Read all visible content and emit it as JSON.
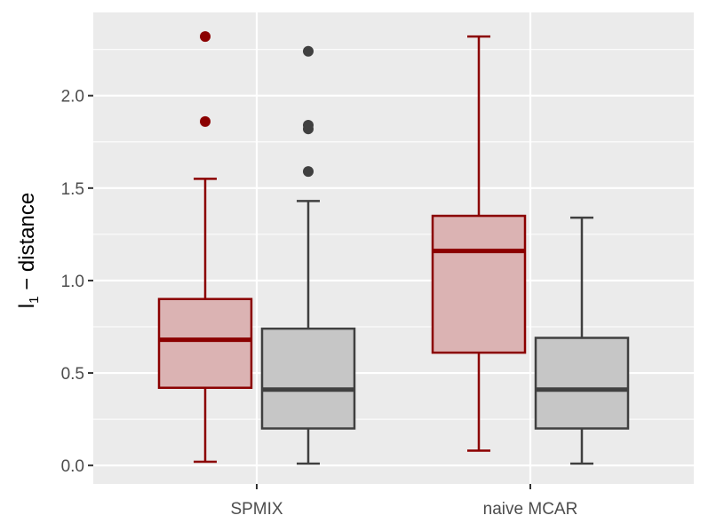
{
  "chart_data": {
    "type": "boxplot",
    "title": "",
    "xlabel": "",
    "ylabel": {
      "base": "l",
      "subscript": "1",
      "rest": " − distance"
    },
    "ylim": [
      -0.1,
      2.45
    ],
    "yticks": [
      "0.0",
      "0.5",
      "1.0",
      "1.5",
      "2.0"
    ],
    "ytick_values": [
      0.0,
      0.5,
      1.0,
      1.5,
      2.0
    ],
    "categories": [
      "SPMIX",
      "naive MCAR"
    ],
    "grid": true,
    "legend": "none",
    "panel_background": "#ebebeb",
    "series": [
      {
        "stroke": "#8b0000",
        "fill": "#dbb3b3",
        "boxes": [
          {
            "whisker_low": 0.02,
            "q1": 0.42,
            "median": 0.68,
            "q3": 0.9,
            "whisker_high": 1.55,
            "outliers": [
              1.86,
              2.32
            ]
          },
          {
            "whisker_low": 0.08,
            "q1": 0.61,
            "median": 1.16,
            "q3": 1.35,
            "whisker_high": 2.32,
            "outliers": []
          }
        ]
      },
      {
        "stroke": "#404040",
        "fill": "#c6c6c6",
        "boxes": [
          {
            "whisker_low": 0.01,
            "q1": 0.2,
            "median": 0.41,
            "q3": 0.74,
            "whisker_high": 1.43,
            "outliers": [
              1.59,
              1.82,
              1.84,
              2.24
            ]
          },
          {
            "whisker_low": 0.01,
            "q1": 0.2,
            "median": 0.41,
            "q3": 0.69,
            "whisker_high": 1.34,
            "outliers": []
          }
        ]
      }
    ]
  }
}
